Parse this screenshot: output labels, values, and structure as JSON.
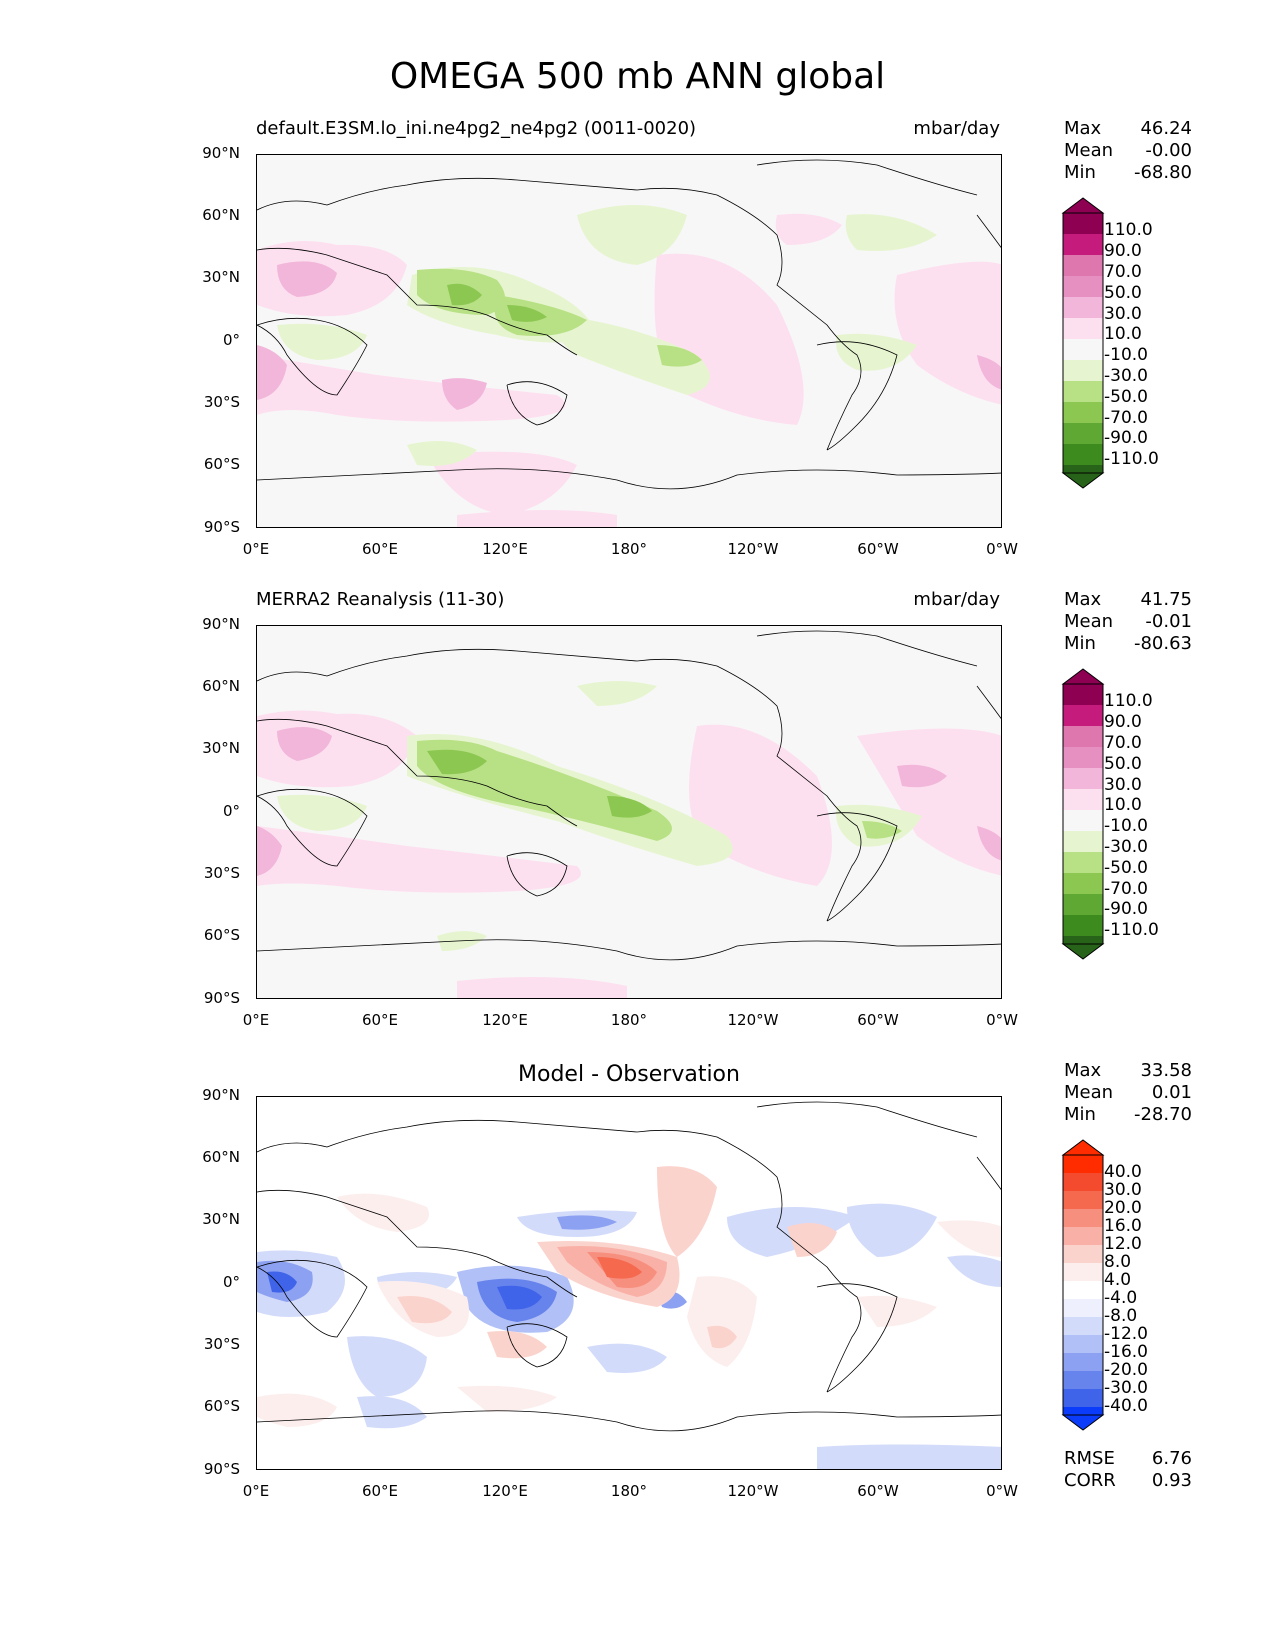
{
  "figure": {
    "title": "OMEGA 500 mb ANN global"
  },
  "axes": {
    "y_ticks": [
      "90°N",
      "60°N",
      "30°N",
      "0°",
      "30°S",
      "60°S",
      "90°S"
    ],
    "x_ticks": [
      "0°E",
      "60°E",
      "120°E",
      "180°",
      "120°W",
      "60°W",
      "0°W"
    ]
  },
  "colors": {
    "positive_scale": [
      "#f7f7f7",
      "#fde0ef",
      "#f1b6da",
      "#e690c2",
      "#de77ae",
      "#c51b7d",
      "#8e0152"
    ],
    "negative_scale": [
      "#f7f7f7",
      "#e6f5d0",
      "#b8e186",
      "#8cc751",
      "#5fa833",
      "#3d8a1f",
      "#276419"
    ],
    "diff_positive": [
      "#fdeeee",
      "#fbd3cd",
      "#f9b1a7",
      "#f78f7f",
      "#f5694f",
      "#f44a2d",
      "#ff2c00"
    ],
    "diff_negative": [
      "#eef1fd",
      "#d2dbfa",
      "#b1c0f6",
      "#8da1f2",
      "#6783ec",
      "#3f64ea",
      "#0b3cfa"
    ]
  },
  "chart_data": [
    {
      "type": "heatmap",
      "panel": "test",
      "title": "default.E3SM.lo_ini.ne4pg2_ne4pg2 (0011-0020)",
      "units": "mbar/day",
      "stats": {
        "max": "46.24",
        "mean": "-0.00",
        "min": "-68.80"
      },
      "colorbar_levels": [
        "110.0",
        "90.0",
        "70.0",
        "50.0",
        "30.0",
        "10.0",
        "-10.0",
        "-30.0",
        "-50.0",
        "-70.0",
        "-90.0",
        "-110.0"
      ],
      "xlim": [
        0,
        360
      ],
      "ylim": [
        -90,
        90
      ]
    },
    {
      "type": "heatmap",
      "panel": "reference",
      "title": "MERRA2 Reanalysis (11-30)",
      "units": "mbar/day",
      "stats": {
        "max": "41.75",
        "mean": "-0.01",
        "min": "-80.63"
      },
      "colorbar_levels": [
        "110.0",
        "90.0",
        "70.0",
        "50.0",
        "30.0",
        "10.0",
        "-10.0",
        "-30.0",
        "-50.0",
        "-70.0",
        "-90.0",
        "-110.0"
      ],
      "xlim": [
        0,
        360
      ],
      "ylim": [
        -90,
        90
      ]
    },
    {
      "type": "heatmap",
      "panel": "difference",
      "title": "Model - Observation",
      "stats": {
        "max": "33.58",
        "mean": "0.01",
        "min": "-28.70"
      },
      "colorbar_levels": [
        "40.0",
        "30.0",
        "20.0",
        "16.0",
        "12.0",
        "8.0",
        "4.0",
        "-4.0",
        "-8.0",
        "-12.0",
        "-16.0",
        "-20.0",
        "-30.0",
        "-40.0"
      ],
      "metrics": {
        "rmse": "6.76",
        "corr": "0.93"
      },
      "xlim": [
        0,
        360
      ],
      "ylim": [
        -90,
        90
      ]
    }
  ],
  "labels": {
    "max": "Max",
    "mean": "Mean",
    "min": "Min",
    "rmse": "RMSE",
    "corr": "CORR"
  }
}
